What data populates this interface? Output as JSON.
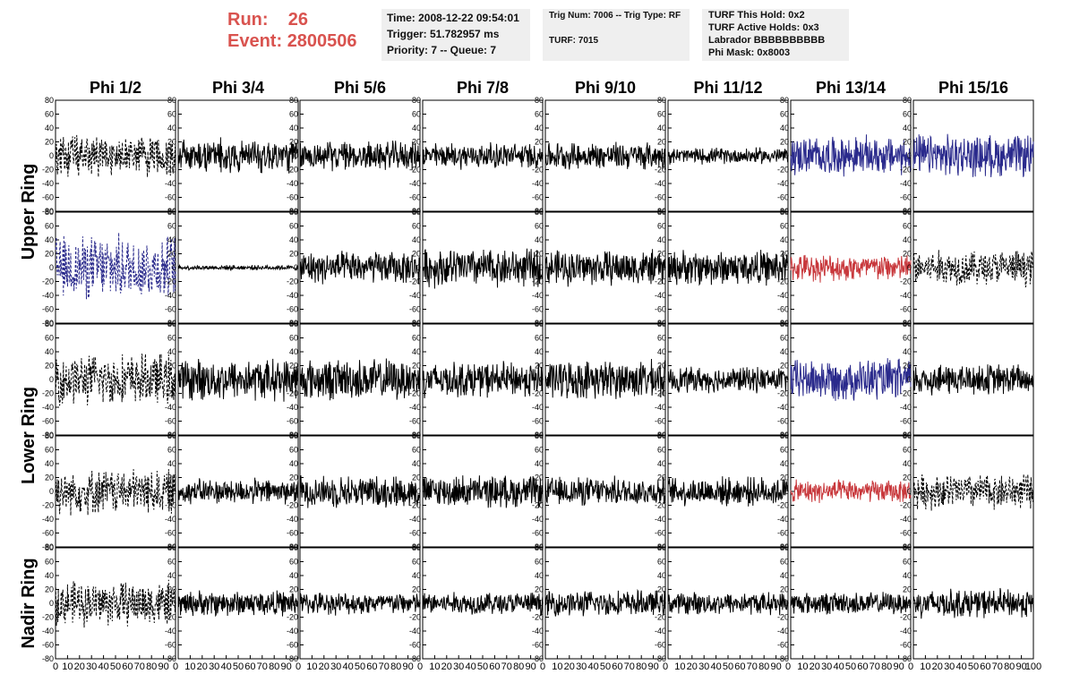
{
  "header": {
    "run_label": "Run:",
    "run_value": "26",
    "event_label": "Event:",
    "event_value": "2800506",
    "time": "Time: 2008-12-22 09:54:01",
    "trigger": "Trigger: 51.782957 ms",
    "priority": "Priority: 7 -- Queue: 7",
    "trig_num": "Trig Num: 7006 -- Trig Type: RF",
    "turf": "TURF: 7015",
    "turf_hold": "TURF This Hold: 0x2",
    "turf_active": "TURF Active Holds: 0x3",
    "labrador": "Labrador BBBBBBBBBB",
    "phi_mask": "Phi Mask: 0x8003"
  },
  "colors": {
    "run_text": "#d9534f",
    "trace_black": "#000000",
    "trace_blue": "#2a2a8c",
    "trace_red": "#c8383c",
    "info_box": "#efefef"
  },
  "chart_data": {
    "type": "line",
    "columns": [
      "Phi 1/2",
      "Phi 3/4",
      "Phi 5/6",
      "Phi 7/8",
      "Phi 9/10",
      "Phi 11/12",
      "Phi 13/14",
      "Phi 15/16"
    ],
    "ring_labels": [
      {
        "text": "Upper Ring",
        "rows": [
          0,
          1
        ]
      },
      {
        "text": "Lower Ring",
        "rows": [
          2,
          3
        ]
      },
      {
        "text": "Nadir Ring",
        "rows": [
          4
        ]
      }
    ],
    "xlim": [
      0,
      100
    ],
    "ylim": [
      -80,
      80
    ],
    "y_ticks": [
      "80",
      "60",
      "40",
      "20",
      "0",
      "-20",
      "-40",
      "-60",
      "-80"
    ],
    "x_ticks": [
      "0",
      "10",
      "20",
      "30",
      "40",
      "50",
      "60",
      "70",
      "80",
      "90",
      "100"
    ],
    "x_tick_rendering": [
      "0 10 20 30 40 50 60 70 80 90 0",
      "10 20 30 40 50 60 70 80 90 0",
      "10 20 30 40 50 60 70 80 90 0",
      "10 20 30 40 50 60 70 80 90 0",
      "10 20 30 40 50 60 70 80 90 0",
      "10 20 30 40 50 60 70 80 90 0",
      "10 20 30 40 50 60 70 80 90 0",
      "10 20 30 40 50 60 70 80 90 100"
    ],
    "waveforms": [
      [
        {
          "amp": 26,
          "style": "dashed",
          "color": "black"
        },
        {
          "amp": 22,
          "style": "solid",
          "color": "black"
        },
        {
          "amp": 18,
          "style": "solid",
          "color": "black"
        },
        {
          "amp": 16,
          "style": "solid",
          "color": "black"
        },
        {
          "amp": 17,
          "style": "solid",
          "color": "black"
        },
        {
          "amp": 10,
          "style": "solid",
          "color": "black"
        },
        {
          "amp": 24,
          "style": "solid",
          "color": "blue"
        },
        {
          "amp": 26,
          "style": "solid",
          "color": "blue"
        }
      ],
      [
        {
          "amp": 40,
          "style": "dashed",
          "color": "blue"
        },
        {
          "amp": 3,
          "style": "solid",
          "color": "black"
        },
        {
          "amp": 20,
          "style": "solid",
          "color": "black"
        },
        {
          "amp": 24,
          "style": "solid",
          "color": "black"
        },
        {
          "amp": 22,
          "style": "solid",
          "color": "black"
        },
        {
          "amp": 22,
          "style": "solid",
          "color": "black"
        },
        {
          "amp": 17,
          "style": "solid",
          "color": "red"
        },
        {
          "amp": 22,
          "style": "dashed",
          "color": "black"
        }
      ],
      [
        {
          "amp": 32,
          "style": "dashed",
          "color": "black"
        },
        {
          "amp": 26,
          "style": "solid",
          "color": "black"
        },
        {
          "amp": 26,
          "style": "solid",
          "color": "black"
        },
        {
          "amp": 22,
          "style": "solid",
          "color": "black"
        },
        {
          "amp": 24,
          "style": "solid",
          "color": "black"
        },
        {
          "amp": 16,
          "style": "solid",
          "color": "black"
        },
        {
          "amp": 26,
          "style": "solid",
          "color": "blue"
        },
        {
          "amp": 20,
          "style": "solid",
          "color": "black"
        }
      ],
      [
        {
          "amp": 28,
          "style": "dashed",
          "color": "black"
        },
        {
          "amp": 16,
          "style": "solid",
          "color": "black"
        },
        {
          "amp": 20,
          "style": "solid",
          "color": "black"
        },
        {
          "amp": 20,
          "style": "solid",
          "color": "black"
        },
        {
          "amp": 18,
          "style": "solid",
          "color": "black"
        },
        {
          "amp": 18,
          "style": "solid",
          "color": "black"
        },
        {
          "amp": 14,
          "style": "solid",
          "color": "red"
        },
        {
          "amp": 22,
          "style": "dashed",
          "color": "black"
        }
      ],
      [
        {
          "amp": 28,
          "style": "dashed",
          "color": "black"
        },
        {
          "amp": 16,
          "style": "solid",
          "color": "black"
        },
        {
          "amp": 14,
          "style": "solid",
          "color": "black"
        },
        {
          "amp": 14,
          "style": "solid",
          "color": "black"
        },
        {
          "amp": 16,
          "style": "solid",
          "color": "black"
        },
        {
          "amp": 14,
          "style": "solid",
          "color": "black"
        },
        {
          "amp": 14,
          "style": "solid",
          "color": "black"
        },
        {
          "amp": 18,
          "style": "solid",
          "color": "black"
        }
      ]
    ]
  }
}
